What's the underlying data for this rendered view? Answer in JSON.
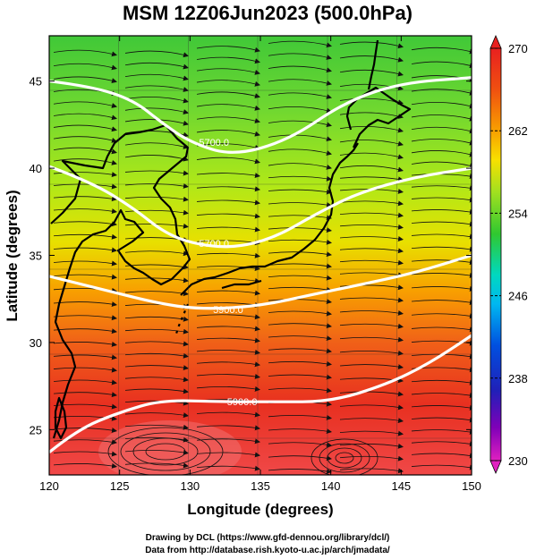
{
  "title": "MSM 12Z06Jun2023 (500.0hPa)",
  "xlabel": "Longitude (degrees)",
  "ylabel": "Latitude  (degrees)",
  "x_ticks": [
    "120",
    "125",
    "130",
    "135",
    "140",
    "145",
    "150"
  ],
  "y_ticks": [
    "25",
    "30",
    "35",
    "40",
    "45"
  ],
  "colorbar": {
    "ticks": [
      "270",
      "262",
      "254",
      "246",
      "238",
      "230"
    ],
    "min": 230,
    "max": 270,
    "colors": [
      "#e020c0",
      "#8000c0",
      "#2020c0",
      "#0060e0",
      "#00b0f0",
      "#00d8b0",
      "#20c840",
      "#60d020",
      "#b0e010",
      "#f0e000",
      "#f8a000",
      "#f06000",
      "#e02000"
    ]
  },
  "contour_labels": [
    "5700.0",
    "5700.0",
    "5900.0",
    "5900.0"
  ],
  "credits": [
    "Drawing by DCL (https://www.gfd-dennou.org/library/dcl/)",
    "Data from http://database.rish.kyoto-u.ac.jp/arch/jmadata/"
  ],
  "chart_data": {
    "type": "heatmap",
    "title": "MSM 12Z06Jun2023 (500.0hPa)",
    "xlabel": "Longitude (degrees)",
    "ylabel": "Latitude  (degrees)",
    "xlim": [
      120,
      150
    ],
    "ylim": [
      22.4,
      47.6
    ],
    "color_range": [
      230,
      270
    ],
    "temperature_by_latitude": [
      {
        "lat": 47,
        "value": 255
      },
      {
        "lat": 43,
        "value": 257
      },
      {
        "lat": 40,
        "value": 259
      },
      {
        "lat": 37,
        "value": 262
      },
      {
        "lat": 34,
        "value": 265
      },
      {
        "lat": 31,
        "value": 267
      },
      {
        "lat": 27,
        "value": 268
      },
      {
        "lat": 24,
        "value": 269
      }
    ],
    "contours": [
      {
        "label": "5700.0",
        "points": [
          [
            120,
            45.0
          ],
          [
            123,
            44.7
          ],
          [
            126,
            43.9
          ],
          [
            128,
            42.6
          ],
          [
            130,
            41.5
          ],
          [
            133,
            40.7
          ],
          [
            137,
            41.6
          ],
          [
            141,
            43.8
          ],
          [
            145,
            44.9
          ],
          [
            150,
            45.2
          ]
        ]
      },
      {
        "label": "5700.0",
        "points": [
          [
            120,
            40.1
          ],
          [
            123,
            39.2
          ],
          [
            126,
            37.7
          ],
          [
            128,
            36.4
          ],
          [
            130,
            35.7
          ],
          [
            133,
            35.4
          ],
          [
            136,
            36.0
          ],
          [
            139,
            37.4
          ],
          [
            142,
            38.6
          ],
          [
            146,
            39.5
          ],
          [
            150,
            40.0
          ]
        ]
      },
      {
        "label": "5900.0",
        "points": [
          [
            120,
            33.8
          ],
          [
            124,
            33.0
          ],
          [
            128,
            32.2
          ],
          [
            131,
            31.9
          ],
          [
            135,
            32.1
          ],
          [
            139,
            32.8
          ],
          [
            142,
            33.3
          ],
          [
            146,
            34.0
          ],
          [
            150,
            35.0
          ]
        ]
      },
      {
        "label": "5900.0",
        "points": [
          [
            120,
            23.7
          ],
          [
            122,
            25.0
          ],
          [
            125,
            26.0
          ],
          [
            128,
            26.7
          ],
          [
            132,
            26.6
          ],
          [
            136,
            26.6
          ],
          [
            140,
            26.6
          ],
          [
            144,
            27.6
          ],
          [
            147,
            28.8
          ],
          [
            150,
            30.4
          ]
        ]
      }
    ]
  }
}
